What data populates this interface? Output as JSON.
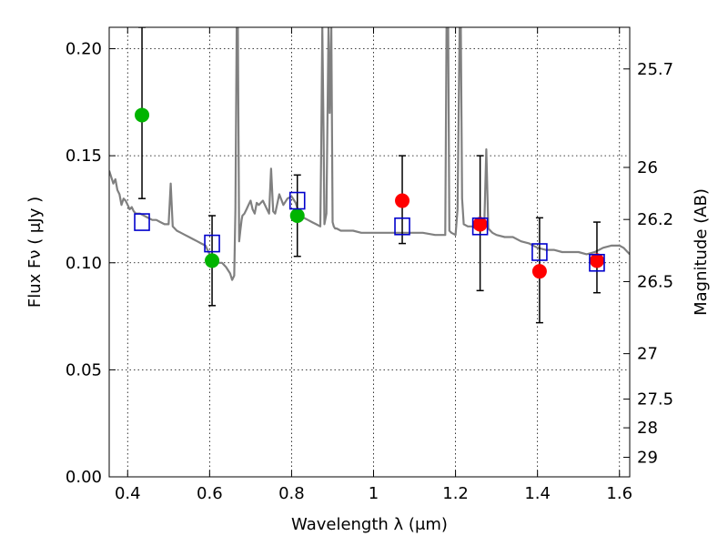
{
  "chart_data": {
    "type": "scatter",
    "xlabel": "Wavelength  λ (μm)",
    "ylabel": "Flux  Fν  ( μJy )",
    "y2label": "Magnitude (AB)",
    "xlim": [
      0.355,
      1.625
    ],
    "ylim": [
      0.0,
      0.21
    ],
    "grid": true,
    "x_ticks": [
      {
        "value": 0.4,
        "label": "0.4"
      },
      {
        "value": 0.6,
        "label": "0.6"
      },
      {
        "value": 0.8,
        "label": "0.8"
      },
      {
        "value": 1.0,
        "label": "1"
      },
      {
        "value": 1.2,
        "label": "1.2"
      },
      {
        "value": 1.4,
        "label": "1.4"
      },
      {
        "value": 1.6,
        "label": "1.6"
      }
    ],
    "y_ticks": [
      {
        "value": 0.0,
        "label": "0.00"
      },
      {
        "value": 0.05,
        "label": "0.05"
      },
      {
        "value": 0.1,
        "label": "0.10"
      },
      {
        "value": 0.15,
        "label": "0.15"
      },
      {
        "value": 0.2,
        "label": "0.20"
      }
    ],
    "y2_ticks": [
      {
        "mag": 25.7,
        "label": "25.7"
      },
      {
        "mag": 26,
        "label": "26"
      },
      {
        "mag": 26.2,
        "label": "26.2"
      },
      {
        "mag": 26.5,
        "label": "26.5"
      },
      {
        "mag": 27,
        "label": "27"
      },
      {
        "mag": 27.5,
        "label": "27.5"
      },
      {
        "mag": 28,
        "label": "28"
      },
      {
        "mag": 29,
        "label": "29"
      }
    ],
    "model_spectrum": {
      "color": "#808080",
      "x": [
        0.355,
        0.36,
        0.365,
        0.37,
        0.375,
        0.38,
        0.385,
        0.39,
        0.395,
        0.4,
        0.405,
        0.41,
        0.415,
        0.42,
        0.43,
        0.44,
        0.45,
        0.46,
        0.47,
        0.48,
        0.49,
        0.5,
        0.505,
        0.51,
        0.52,
        0.53,
        0.54,
        0.55,
        0.56,
        0.57,
        0.58,
        0.59,
        0.6,
        0.61,
        0.62,
        0.63,
        0.64,
        0.65,
        0.655,
        0.66,
        0.663,
        0.666,
        0.669,
        0.672,
        0.675,
        0.678,
        0.68,
        0.685,
        0.69,
        0.695,
        0.7,
        0.705,
        0.71,
        0.715,
        0.72,
        0.73,
        0.74,
        0.745,
        0.75,
        0.755,
        0.76,
        0.77,
        0.78,
        0.79,
        0.8,
        0.81,
        0.815,
        0.82,
        0.825,
        0.83,
        0.84,
        0.85,
        0.86,
        0.87,
        0.872,
        0.875,
        0.878,
        0.88,
        0.885,
        0.89,
        0.893,
        0.897,
        0.9,
        0.903,
        0.906,
        0.91,
        0.92,
        0.93,
        0.95,
        0.97,
        1.0,
        1.03,
        1.06,
        1.09,
        1.12,
        1.15,
        1.175,
        1.178,
        1.182,
        1.185,
        1.19,
        1.2,
        1.205,
        1.21,
        1.213,
        1.216,
        1.22,
        1.23,
        1.24,
        1.25,
        1.26,
        1.27,
        1.275,
        1.28,
        1.29,
        1.3,
        1.32,
        1.34,
        1.36,
        1.38,
        1.4,
        1.42,
        1.44,
        1.46,
        1.48,
        1.5,
        1.52,
        1.54,
        1.56,
        1.58,
        1.6,
        1.61,
        1.62,
        1.625
      ],
      "y": [
        0.143,
        0.14,
        0.137,
        0.139,
        0.134,
        0.132,
        0.127,
        0.13,
        0.129,
        0.127,
        0.125,
        0.126,
        0.124,
        0.123,
        0.123,
        0.122,
        0.121,
        0.12,
        0.12,
        0.119,
        0.118,
        0.118,
        0.137,
        0.117,
        0.115,
        0.114,
        0.113,
        0.112,
        0.111,
        0.11,
        0.109,
        0.108,
        0.104,
        0.102,
        0.1,
        0.1,
        0.098,
        0.095,
        0.092,
        0.094,
        0.125,
        0.21,
        0.21,
        0.11,
        0.115,
        0.12,
        0.122,
        0.123,
        0.125,
        0.127,
        0.129,
        0.125,
        0.123,
        0.128,
        0.127,
        0.129,
        0.125,
        0.123,
        0.144,
        0.124,
        0.123,
        0.132,
        0.127,
        0.13,
        0.131,
        0.128,
        0.125,
        0.123,
        0.122,
        0.121,
        0.12,
        0.119,
        0.118,
        0.117,
        0.15,
        0.21,
        0.16,
        0.118,
        0.123,
        0.21,
        0.17,
        0.21,
        0.119,
        0.117,
        0.116,
        0.116,
        0.115,
        0.115,
        0.115,
        0.114,
        0.114,
        0.114,
        0.114,
        0.114,
        0.114,
        0.113,
        0.113,
        0.21,
        0.21,
        0.115,
        0.114,
        0.113,
        0.125,
        0.21,
        0.21,
        0.13,
        0.118,
        0.117,
        0.117,
        0.116,
        0.121,
        0.116,
        0.153,
        0.116,
        0.114,
        0.113,
        0.112,
        0.112,
        0.11,
        0.109,
        0.107,
        0.106,
        0.106,
        0.105,
        0.105,
        0.105,
        0.104,
        0.105,
        0.107,
        0.108,
        0.108,
        0.107,
        0.105,
        0.104
      ]
    },
    "series": [
      {
        "marker": "circle",
        "points": [
          {
            "x": 0.435,
            "y": 0.169,
            "color": "#00b400"
          },
          {
            "x": 0.606,
            "y": 0.101,
            "color": "#00b400"
          },
          {
            "x": 0.814,
            "y": 0.122,
            "color": "#00b400"
          },
          {
            "x": 1.07,
            "y": 0.129,
            "color": "#ff0000"
          },
          {
            "x": 1.26,
            "y": 0.118,
            "color": "#ff0000"
          },
          {
            "x": 1.405,
            "y": 0.096,
            "color": "#ff0000"
          },
          {
            "x": 1.545,
            "y": 0.101,
            "color": "#ff0000"
          }
        ],
        "errors": [
          [
            0.13,
            0.21
          ],
          [
            0.08,
            0.122
          ],
          [
            0.103,
            0.141
          ],
          [
            0.109,
            0.15
          ],
          [
            0.087,
            0.15
          ],
          [
            0.072,
            0.121
          ],
          [
            0.086,
            0.119
          ]
        ],
        "error_color": "#000000"
      },
      {
        "marker": "square",
        "color": "#0000cc",
        "points": [
          {
            "x": 0.435,
            "y": 0.119
          },
          {
            "x": 0.606,
            "y": 0.109
          },
          {
            "x": 0.814,
            "y": 0.129
          },
          {
            "x": 1.07,
            "y": 0.117
          },
          {
            "x": 1.26,
            "y": 0.117
          },
          {
            "x": 1.405,
            "y": 0.105
          },
          {
            "x": 1.545,
            "y": 0.1
          }
        ]
      }
    ]
  }
}
